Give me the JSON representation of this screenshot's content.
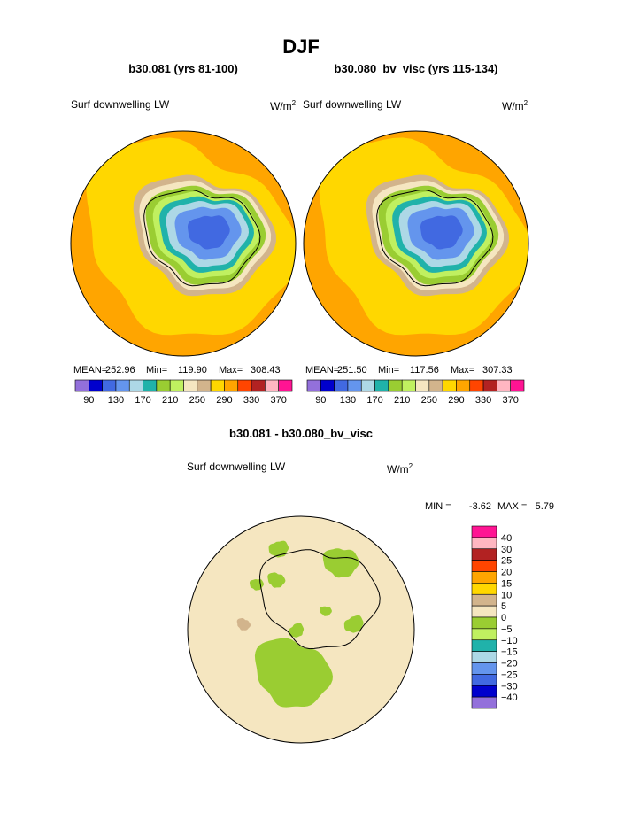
{
  "title": "DJF",
  "panels": [
    {
      "case": "b30.081 (yrs 81-100)",
      "variable": "Surf downwelling LW",
      "units": "W/m",
      "units_sup": "2",
      "stats": [
        {
          "label": "MEAN=",
          "value": "252.96"
        },
        {
          "label": "Min=",
          "value": "119.90"
        },
        {
          "label": "Max=",
          "value": "308.43"
        }
      ],
      "colorbar": {
        "colors": [
          "#9370db",
          "#0000cd",
          "#4169e1",
          "#6495ed",
          "#add8e6",
          "#20b2aa",
          "#9acd32",
          "#c0f060",
          "#f5e6c0",
          "#d2b48c",
          "#ffd700",
          "#ffa500",
          "#ff4500",
          "#b22222",
          "#ffb6c1",
          "#ff1493"
        ],
        "labels": [
          "90",
          "130",
          "170",
          "210",
          "250",
          "290",
          "330",
          "370"
        ]
      }
    },
    {
      "case": "b30.080_bv_visc (yrs 115-134)",
      "variable": "Surf downwelling LW",
      "units": "W/m",
      "units_sup": "2",
      "stats": [
        {
          "label": "MEAN=",
          "value": "251.50"
        },
        {
          "label": "Min=",
          "value": "117.56"
        },
        {
          "label": "Max=",
          "value": "307.33"
        }
      ],
      "colorbar": {
        "colors": [
          "#9370db",
          "#0000cd",
          "#4169e1",
          "#6495ed",
          "#add8e6",
          "#20b2aa",
          "#9acd32",
          "#c0f060",
          "#f5e6c0",
          "#d2b48c",
          "#ffd700",
          "#ffa500",
          "#ff4500",
          "#b22222",
          "#ffb6c1",
          "#ff1493"
        ],
        "labels": [
          "90",
          "130",
          "170",
          "210",
          "250",
          "290",
          "330",
          "370"
        ]
      }
    }
  ],
  "diff": {
    "title": "b30.081 - b30.080_bv_visc",
    "variable": "Surf downwelling LW",
    "units": "W/m",
    "units_sup": "2",
    "min_label": "MIN =",
    "min": "-3.62",
    "max_label": "MAX =",
    "max": "5.79",
    "colorbar": {
      "colors": [
        "#ff1493",
        "#ffb6c1",
        "#b22222",
        "#ff4500",
        "#ffa500",
        "#ffd700",
        "#d2b48c",
        "#f5e6c0",
        "#9acd32",
        "#c0f060",
        "#20b2aa",
        "#add8e6",
        "#6495ed",
        "#4169e1",
        "#0000cd",
        "#9370db"
      ],
      "labels": [
        "40",
        "30",
        "25",
        "20",
        "15",
        "10",
        "5",
        "0",
        "−5",
        "−10",
        "−15",
        "−20",
        "−25",
        "−30",
        "−40"
      ]
    }
  }
}
